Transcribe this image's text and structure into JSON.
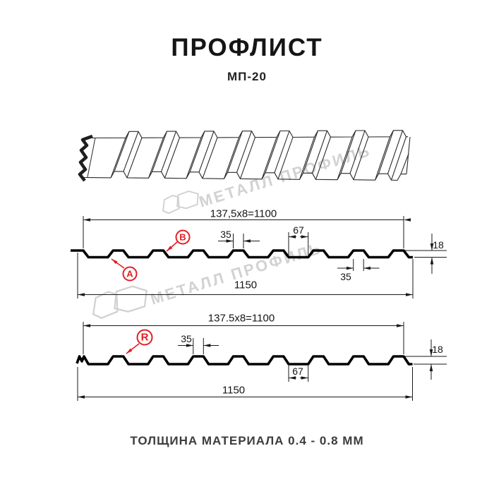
{
  "page": {
    "title": "ПРОФЛИСТ",
    "subtitle": "МП-20",
    "footer": "ТОЛЩИНА МАТЕРИАЛА 0.4 - 0.8 ММ"
  },
  "watermark": {
    "text": "МЕТАЛЛ ПРОФИЛЬ"
  },
  "colors": {
    "accent_red": "#e31e24",
    "line": "#1a1a1a",
    "watermark_gray": "#d2d2d2"
  },
  "view_top": {
    "coverage_width": "137,5x8=1100",
    "crest_width": "35",
    "valley_width": "67",
    "profile_height": "18",
    "crest_width_bottom": "35",
    "overall_width": "1150",
    "marker_a": "A",
    "marker_b": "B"
  },
  "view_bottom": {
    "coverage_width": "137.5x8=1100",
    "crest_width": "35",
    "valley_width": "67",
    "profile_height": "18",
    "overall_width": "1150",
    "marker_r": "R"
  }
}
